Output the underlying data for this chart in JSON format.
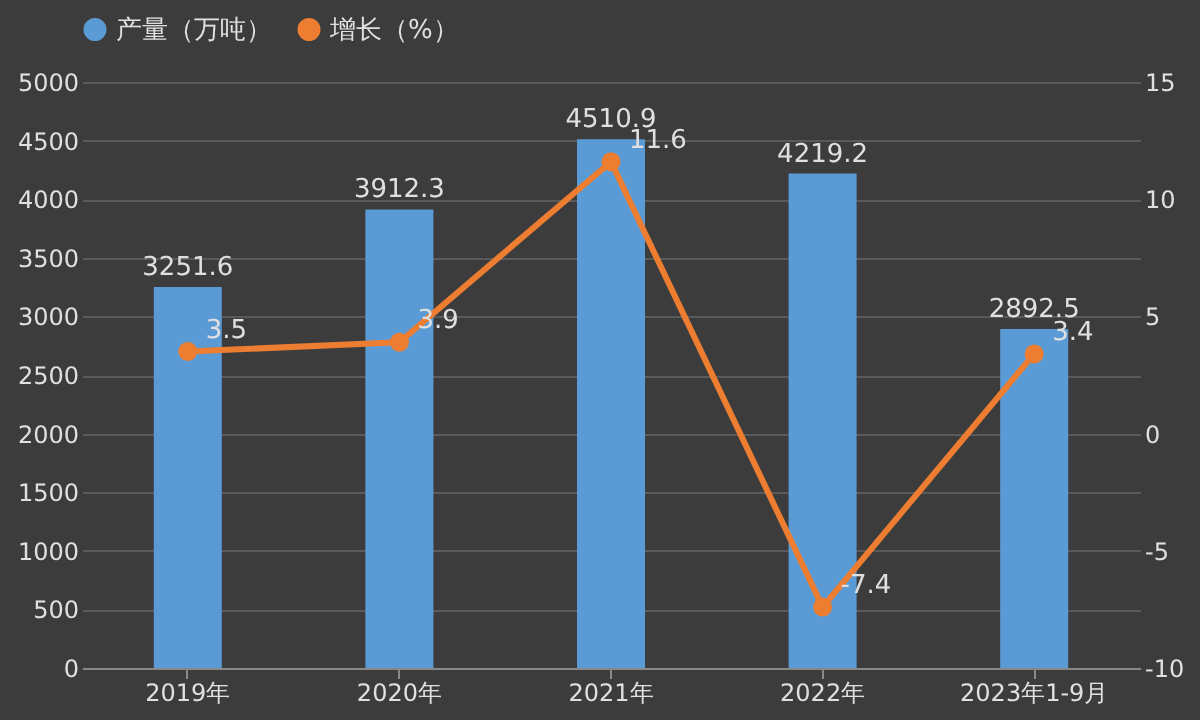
{
  "chart_data": {
    "type": "bar",
    "categories": [
      "2019年",
      "2020年",
      "2021年",
      "2022年",
      "2023年1-9月"
    ],
    "series": [
      {
        "name": "产量（万吨）",
        "color": "#5b9bd5",
        "values": [
          3251.6,
          3912.3,
          4510.9,
          4219.2,
          2892.5
        ]
      },
      {
        "name": "增长（%）",
        "type": "line",
        "axis": "y2",
        "color": "#ed7d31",
        "values": [
          3.5,
          3.9,
          11.6,
          -7.4,
          3.4
        ]
      }
    ],
    "ylim": [
      0,
      5000
    ],
    "yticks": [
      0,
      500,
      1000,
      1500,
      2000,
      2500,
      3000,
      3500,
      4000,
      4500,
      5000
    ],
    "y2lim": [
      -10,
      15
    ],
    "y2ticks": [
      -10,
      -5,
      0,
      5,
      10,
      15
    ],
    "grid": "y",
    "legend": "top",
    "marker": "circle",
    "line_style": "solid",
    "data_labels": true
  }
}
